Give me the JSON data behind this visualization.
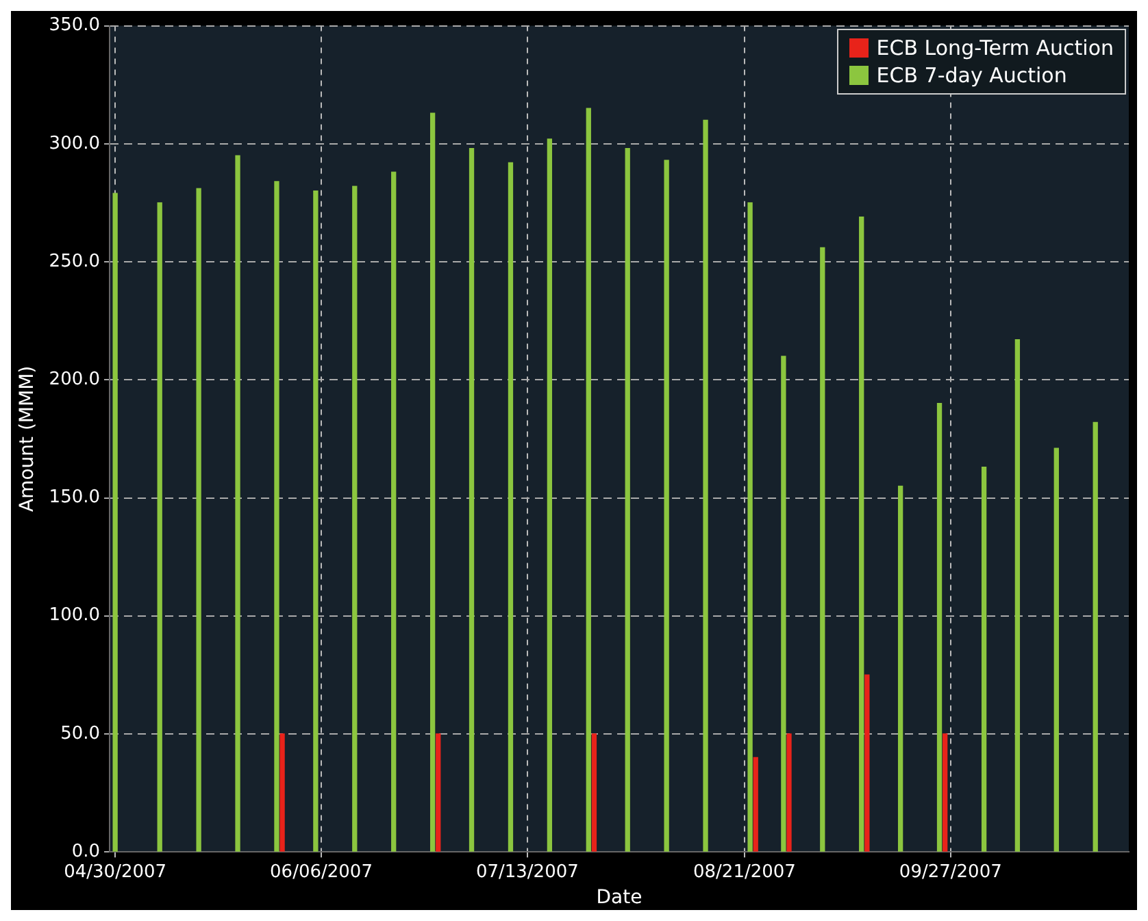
{
  "chart_data": {
    "type": "bar",
    "xlabel": "Date",
    "ylabel": "Amount (MMM)",
    "xlim": [
      "2007-04-29",
      "2007-10-29"
    ],
    "xticks": [
      {
        "value": "2007-04-30",
        "label": "04/30/2007"
      },
      {
        "value": "2007-06-06",
        "label": "06/06/2007"
      },
      {
        "value": "2007-07-13",
        "label": "07/13/2007"
      },
      {
        "value": "2007-08-21",
        "label": "08/21/2007"
      },
      {
        "value": "2007-09-27",
        "label": "09/27/2007"
      }
    ],
    "ylim": [
      0,
      350
    ],
    "yticks": [
      {
        "value": 0,
        "label": "0.0"
      },
      {
        "value": 50,
        "label": "50.0"
      },
      {
        "value": 100,
        "label": "100.0"
      },
      {
        "value": 150,
        "label": "150.0"
      },
      {
        "value": 200,
        "label": "200.0"
      },
      {
        "value": 250,
        "label": "250.0"
      },
      {
        "value": 300,
        "label": "300.0"
      },
      {
        "value": 350,
        "label": "350.0"
      }
    ],
    "grid": true,
    "legend": "top right",
    "series": [
      {
        "name": "ECB Long-Term Auction",
        "color": "#e8231a",
        "x": [
          "2007-05-30",
          "2007-06-27",
          "2007-07-25",
          "2007-08-23",
          "2007-08-29",
          "2007-09-12",
          "2007-09-26"
        ],
        "values": [
          50,
          50,
          50,
          40,
          50,
          75,
          50
        ]
      },
      {
        "name": "ECB 7-day Auction",
        "color": "#8cc63f",
        "x": [
          "2007-04-30",
          "2007-05-08",
          "2007-05-15",
          "2007-05-22",
          "2007-05-29",
          "2007-06-05",
          "2007-06-12",
          "2007-06-19",
          "2007-06-26",
          "2007-07-03",
          "2007-07-10",
          "2007-07-17",
          "2007-07-24",
          "2007-07-31",
          "2007-08-07",
          "2007-08-14",
          "2007-08-22",
          "2007-08-28",
          "2007-09-04",
          "2007-09-11",
          "2007-09-18",
          "2007-09-25",
          "2007-10-03",
          "2007-10-09",
          "2007-10-16",
          "2007-10-23"
        ],
        "values": [
          279,
          275,
          281,
          295,
          284,
          280,
          282,
          288,
          313,
          298,
          292,
          302,
          315,
          298,
          293,
          310,
          275,
          210,
          256,
          269,
          155,
          190,
          163,
          217,
          171,
          182
        ]
      }
    ]
  }
}
